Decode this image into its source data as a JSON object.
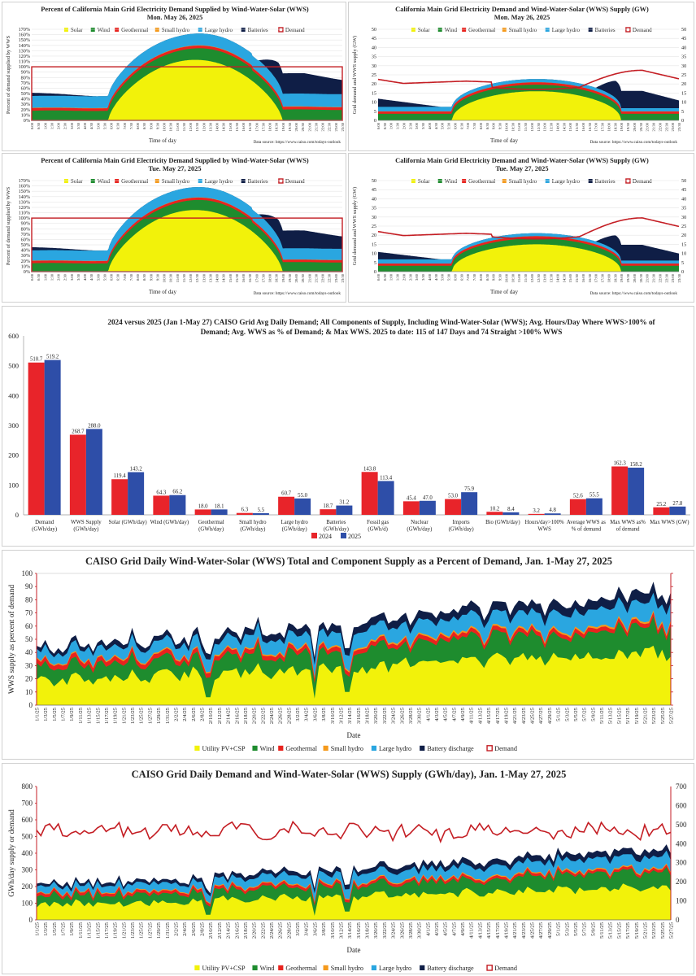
{
  "colors": {
    "solar": "#f2f20a",
    "wind": "#1e8c2e",
    "geothermal": "#e8231e",
    "smallhydro": "#f59a1c",
    "largehydro": "#2aa6e0",
    "batteries": "#0f1e46",
    "demand": "#c41e24",
    "bar2024": "#e8242a",
    "bar2025": "#2e4ea8"
  },
  "legend_daily": [
    "Solar",
    "Wind",
    "Geothermal",
    "Small hydro",
    "Large hydro",
    "Batteries",
    "Demand"
  ],
  "legend_ytd": [
    "Utility PV+CSP",
    "Wind",
    "Geothermal",
    "Small hydro",
    "Large hydro",
    "Battery discharge",
    "Demand"
  ],
  "time_ticks": [
    "0:00",
    "0:30",
    "1:00",
    "1:30",
    "2:00",
    "2:30",
    "3:00",
    "3:30",
    "4:00",
    "4:30",
    "5:00",
    "5:30",
    "6:00",
    "6:30",
    "7:00",
    "7:30",
    "8:00",
    "8:30",
    "9:00",
    "9:30",
    "10:00",
    "10:30",
    "11:00",
    "11:30",
    "12:00",
    "12:30",
    "13:00",
    "13:30",
    "14:00",
    "14:30",
    "15:00",
    "15:30",
    "16:00",
    "16:30",
    "17:00",
    "17:30",
    "18:00",
    "18:30",
    "19:00",
    "19:30",
    "20:00",
    "20:30",
    "21:00",
    "21:30",
    "22:00",
    "22:30",
    "23:00",
    "23:30"
  ],
  "date_ticks": [
    "1/1/25",
    "1/3/25",
    "1/5/25",
    "1/7/25",
    "1/9/25",
    "1/11/25",
    "1/13/25",
    "1/15/25",
    "1/17/25",
    "1/19/25",
    "1/21/25",
    "1/23/25",
    "1/25/25",
    "1/27/25",
    "1/29/25",
    "1/31/25",
    "2/2/25",
    "2/4/25",
    "2/6/25",
    "2/8/25",
    "2/10/25",
    "2/12/25",
    "2/14/25",
    "2/16/25",
    "2/18/25",
    "2/20/25",
    "2/22/25",
    "2/24/25",
    "2/26/25",
    "2/28/25",
    "3/2/25",
    "3/4/25",
    "3/6/25",
    "3/8/25",
    "3/10/25",
    "3/12/25",
    "3/14/25",
    "3/16/25",
    "3/18/25",
    "3/20/25",
    "3/22/25",
    "3/24/25",
    "3/26/25",
    "3/28/25",
    "3/30/25",
    "4/1/25",
    "4/3/25",
    "4/5/25",
    "4/7/25",
    "4/9/25",
    "4/11/25",
    "4/13/25",
    "4/15/25",
    "4/17/25",
    "4/19/25",
    "4/21/25",
    "4/23/25",
    "4/25/25",
    "4/27/25",
    "4/29/25",
    "5/1/25",
    "5/3/25",
    "5/5/25",
    "5/7/25",
    "5/9/25",
    "5/11/25",
    "5/13/25",
    "5/15/25",
    "5/17/25",
    "5/19/25",
    "5/21/25",
    "5/23/25",
    "5/25/25",
    "5/27/25"
  ],
  "source": "Data source: https://www.caiso.com/todays-outlook",
  "chart_data": [
    {
      "type": "area",
      "title": "Percent of California Main Grid Electricity Demand Supplied by Wind-Water-Solar (WWS)",
      "subtitle": "Mon. May 26, 2025",
      "xlabel": "Time of day",
      "ylabel": "Percent of demand supplied by WWS",
      "ylim": [
        0,
        170
      ],
      "yticks": [
        "0%",
        "10%",
        "20%",
        "30%",
        "40%",
        "50%",
        "60%",
        "70%",
        "80%",
        "90%",
        "100%",
        "110%",
        "120%",
        "130%",
        "140%",
        "150%",
        "160%",
        "170%"
      ],
      "reference_line": 100,
      "series_summary": {
        "peak_total_percent": 140,
        "peak_solar_percent": 113,
        "night_total_percent": 55,
        "end_total_percent": 44
      }
    },
    {
      "type": "area",
      "title": "California Main Grid Electricity Demand and Wind-Water-Solar (WWS) Supply (GW)",
      "subtitle": "Mon. May 26, 2025",
      "xlabel": "Time of day",
      "ylabel": "Grid demand and WWS supply (GW)",
      "ylim": [
        0,
        50
      ],
      "series_summary": {
        "demand_start_gw": 22.5,
        "demand_min_gw": 17,
        "demand_max_gw": 27.5,
        "wws_peak_gw": 23.5,
        "wws_night_gw": 11
      }
    },
    {
      "type": "area",
      "title": "Percent of California Main Grid Electricity Demand Supplied by Wind-Water-Solar (WWS)",
      "subtitle": "Tue. May 27, 2025",
      "xlabel": "Time of day",
      "ylabel": "Percent of demand supplied by WWS",
      "ylim": [
        0,
        170
      ],
      "reference_line": 100,
      "series_summary": {
        "peak_total_percent": 128,
        "peak_solar_percent": 115,
        "night_total_percent": 48,
        "end_total_percent": 36
      }
    },
    {
      "type": "area",
      "title": "California Main Grid Electricity Demand and Wind-Water-Solar (WWS) Supply (GW)",
      "subtitle": "Tue. May 27, 2025",
      "xlabel": "Time of day",
      "ylabel": "Grid demand and WWS supply (GW)",
      "ylim": [
        0,
        50
      ],
      "series_summary": {
        "demand_start_gw": 22,
        "demand_min_gw": 18,
        "demand_max_gw": 29.5,
        "wws_peak_gw": 22.5,
        "wws_night_gw": 10
      }
    },
    {
      "type": "bar",
      "title": "2024 versus 2025 (Jan 1-May 27) CAISO Grid Avg Daily Demand; All Components of Supply, Including Wind-Water-Solar (WWS); Avg. Hours/Day Where WWS>100% of Demand; Avg. WWS as % of Demand; & Max WWS. 2025 to date: 115 of 147 Days and 74 Straight >100% WWS",
      "categories": [
        "Demand\n(GWh/day)",
        "WWS Supply\n(GWh/day)",
        "Solar (GWh/day)",
        "Wind (GWh/day)",
        "Geothermal\n(GWh/day)",
        "Small hydro\n(GWh/day)",
        "Large hydro\n(GWh/day)",
        "Batteries\n(GWh/day)",
        "Fossil gas\n(GWh/d)",
        "Nuclear\n(GWh/day)",
        "Imports\n(GWh/day)",
        "Bio (GWh/day)",
        "Hours/day>100%\nWWS",
        "Average WWS as\n% of demand",
        "Max WWS as%\nof demand",
        "Max WWS (GW)"
      ],
      "series": [
        {
          "name": "2024",
          "values": [
            510.7,
            268.7,
            119.4,
            64.3,
            18.0,
            6.3,
            60.7,
            18.7,
            143.8,
            45.4,
            53.0,
            10.2,
            3.2,
            52.6,
            162.3,
            25.2
          ]
        },
        {
          "name": "2025",
          "values": [
            519.2,
            288.0,
            143.2,
            66.2,
            18.1,
            5.5,
            55.0,
            31.2,
            113.4,
            47.0,
            75.9,
            8.4,
            4.8,
            55.5,
            158.2,
            27.8
          ]
        }
      ],
      "labels_2024": [
        "510.7",
        "268.7",
        "119.4",
        "64.3",
        "18.0",
        "6.3",
        "60.7",
        "18.7",
        "143.8",
        "45.4",
        "53.0",
        "10.2",
        "3.2",
        "52.6",
        "162.3",
        "25.2"
      ],
      "labels_2025": [
        "519.2",
        "288.0",
        "143.2",
        "66.2",
        "18.1",
        "5.5",
        "55.0",
        "31.2",
        "113.4",
        "47.0",
        "75.9",
        "8.4",
        "4.8",
        "55.5",
        "158.2",
        "27.8"
      ],
      "ylim": [
        0,
        600
      ],
      "yticks": [
        "0",
        "100",
        "200",
        "300",
        "400",
        "500",
        "600"
      ],
      "legend": "bottom"
    },
    {
      "type": "area",
      "title": "CAISO Grid Daily Wind-Water-Solar (WWS) Total and Component Supply as a Percent of Demand, Jan. 1-May 27, 2025",
      "xlabel": "Date",
      "ylabel": "WWS supply as percent of demand",
      "ylim": [
        0,
        100
      ],
      "yticks": [
        "0",
        "10",
        "20",
        "30",
        "40",
        "50",
        "60",
        "70",
        "80",
        "90",
        "100"
      ],
      "series_summary": {
        "total_start_percent": 42,
        "total_end_percent": 88,
        "solar_start_percent": 20,
        "solar_end_percent": 40
      }
    },
    {
      "type": "area",
      "title": "CAISO Grid Daily Demand and Wind-Water-Solar (WWS) Supply (GWh/day), Jan. 1-May 27, 2025",
      "xlabel": "Date",
      "ylabel": "GWh/day supply or demand",
      "ylim": [
        0,
        800
      ],
      "yticks_left": [
        "0",
        "100",
        "200",
        "300",
        "400",
        "500",
        "600",
        "700",
        "800"
      ],
      "yticks_right": [
        "0",
        "100",
        "200",
        "300",
        "400",
        "500",
        "600",
        "700"
      ],
      "series_summary": {
        "demand_typical_gwh": 530,
        "wws_start_gwh": 230,
        "wws_end_gwh": 420
      }
    }
  ]
}
